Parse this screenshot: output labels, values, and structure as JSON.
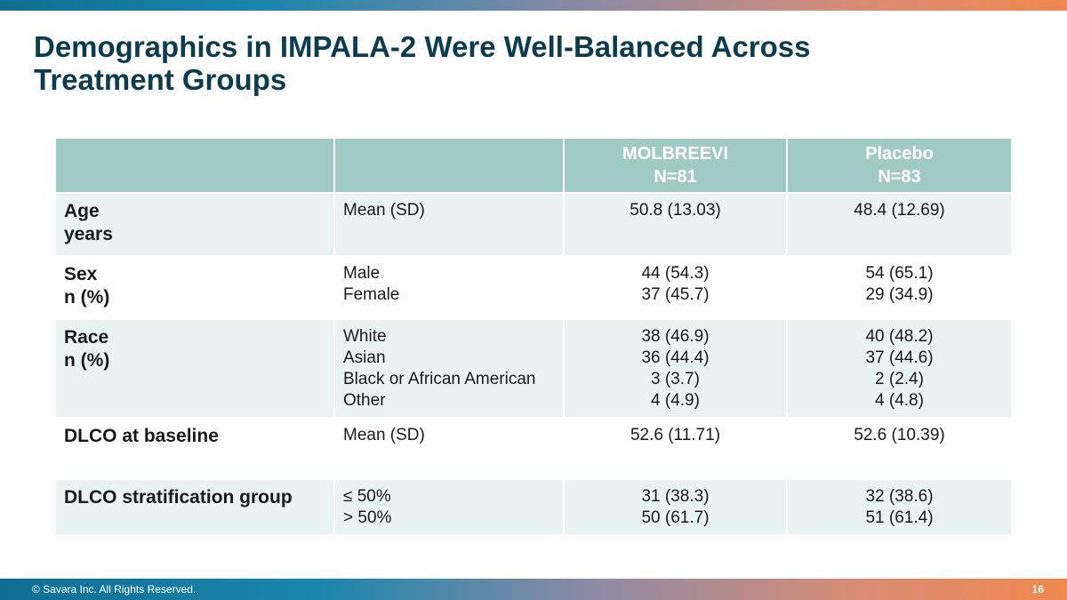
{
  "slide": {
    "title_line1": "Demographics in IMPALA-2 Were Well-Balanced Across",
    "title_line2": "Treatment Groups"
  },
  "table": {
    "headers": [
      {
        "line1": "",
        "line2": ""
      },
      {
        "line1": "",
        "line2": ""
      },
      {
        "line1": "MOLBREEVI",
        "line2": "N=81"
      },
      {
        "line1": "Placebo",
        "line2": "N=83"
      }
    ],
    "rows": [
      {
        "label_line1": "Age",
        "label_line2": "years",
        "sub": [
          "Mean (SD)"
        ],
        "molbreevi": [
          "50.8 (13.03)"
        ],
        "placebo": [
          "48.4 (12.69)"
        ]
      },
      {
        "label_line1": "Sex",
        "label_line2": "n (%)",
        "sub": [
          "Male",
          "Female"
        ],
        "molbreevi": [
          "44 (54.3)",
          "37 (45.7)"
        ],
        "placebo": [
          "54 (65.1)",
          "29 (34.9)"
        ]
      },
      {
        "label_line1": "Race",
        "label_line2": "n (%)",
        "sub": [
          "White",
          "Asian",
          "Black or African American",
          "Other"
        ],
        "molbreevi": [
          "38 (46.9)",
          "36 (44.4)",
          "3 (3.7)",
          "4 (4.9)"
        ],
        "placebo": [
          "40 (48.2)",
          "37 (44.6)",
          "2 (2.4)",
          "4 (4.8)"
        ]
      },
      {
        "label_line1": "DLCO at baseline",
        "label_line2": "",
        "sub": [
          "Mean (SD)"
        ],
        "molbreevi": [
          "52.6 (11.71)"
        ],
        "placebo": [
          "52.6 (10.39)"
        ]
      },
      {
        "label_line1": "DLCO stratification group",
        "label_line2": "",
        "sub": [
          "≤ 50%",
          "> 50%"
        ],
        "molbreevi": [
          "31 (38.3)",
          "50 (61.7)"
        ],
        "placebo": [
          "32 (38.6)",
          "51 (61.4)"
        ]
      }
    ]
  },
  "footer": {
    "copyright": "© Savara Inc. All Rights Reserved.",
    "page_number": "16"
  }
}
